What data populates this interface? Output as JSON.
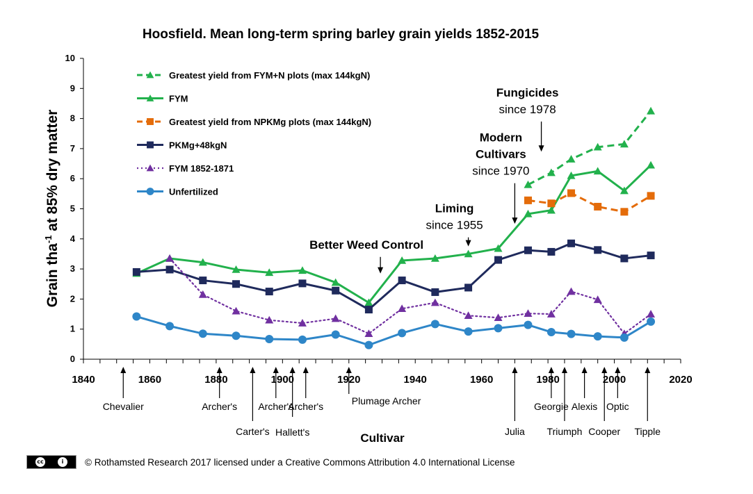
{
  "chart_data": {
    "type": "line",
    "title": "Hoosfield. Mean long-term spring barley grain yields 1852-2015",
    "xlabel": "Cultivar",
    "ylabel_main": "Grain tha",
    "ylabel_sup": "-1",
    "ylabel_rest": " at 85% dry matter",
    "xlim": [
      1840,
      2020
    ],
    "ylim": [
      0,
      10
    ],
    "x_ticks": [
      1840,
      1860,
      1880,
      1900,
      1920,
      1940,
      1960,
      1980,
      2000,
      2020
    ],
    "y_ticks": [
      0,
      1,
      2,
      3,
      4,
      5,
      6,
      7,
      8,
      9,
      10
    ],
    "legend_position": "top-left",
    "series": [
      {
        "name": "Greatest yield from FYM+N plots (max 144kgN)",
        "color": "#22b14c",
        "line": "dashed",
        "marker": "triangle",
        "x": [
          1974,
          1981,
          1987,
          1995,
          2003,
          2011
        ],
        "y": [
          5.8,
          6.2,
          6.65,
          7.05,
          7.15,
          8.25
        ]
      },
      {
        "name": "FYM",
        "color": "#22b14c",
        "line": "solid",
        "marker": "triangle",
        "x": [
          1856,
          1866,
          1876,
          1886,
          1896,
          1906,
          1916,
          1926,
          1936,
          1946,
          1956,
          1965,
          1974,
          1981,
          1987,
          1995,
          2003,
          2011
        ],
        "y": [
          2.85,
          3.35,
          3.22,
          2.98,
          2.88,
          2.95,
          2.55,
          1.88,
          3.28,
          3.35,
          3.5,
          3.68,
          4.83,
          4.95,
          6.1,
          6.25,
          5.6,
          6.45
        ]
      },
      {
        "name": "Greatest yield from NPKMg plots (max 144kgN)",
        "color": "#e46c0a",
        "line": "dashed",
        "marker": "square",
        "x": [
          1974,
          1981,
          1987,
          1995,
          2003,
          2011
        ],
        "y": [
          5.28,
          5.18,
          5.52,
          5.07,
          4.9,
          5.43
        ]
      },
      {
        "name": "PKMg+48kgN",
        "color": "#1f2a5c",
        "line": "solid",
        "marker": "square",
        "x": [
          1856,
          1866,
          1876,
          1886,
          1896,
          1906,
          1916,
          1926,
          1936,
          1946,
          1956,
          1965,
          1974,
          1981,
          1987,
          1995,
          2003,
          2011
        ],
        "y": [
          2.9,
          2.98,
          2.62,
          2.5,
          2.25,
          2.52,
          2.28,
          1.65,
          2.62,
          2.23,
          2.38,
          3.3,
          3.62,
          3.57,
          3.85,
          3.63,
          3.35,
          3.45
        ]
      },
      {
        "name": "FYM 1852-1871",
        "color": "#7030a0",
        "line": "dotted",
        "marker": "triangle",
        "x": [
          1866,
          1876,
          1886,
          1896,
          1906,
          1916,
          1926,
          1936,
          1946,
          1956,
          1965,
          1974,
          1981,
          1987,
          1995,
          2003,
          2011
        ],
        "y": [
          3.35,
          2.15,
          1.6,
          1.3,
          1.2,
          1.35,
          0.85,
          1.68,
          1.88,
          1.45,
          1.38,
          1.52,
          1.5,
          2.25,
          1.98,
          0.85,
          1.5
        ]
      },
      {
        "name": "Unfertilized",
        "color": "#2e86c8",
        "line": "solid",
        "marker": "circle",
        "x": [
          1856,
          1866,
          1876,
          1886,
          1896,
          1906,
          1916,
          1926,
          1936,
          1946,
          1956,
          1965,
          1974,
          1981,
          1987,
          1995,
          2003,
          2011
        ],
        "y": [
          1.42,
          1.1,
          0.85,
          0.78,
          0.67,
          0.65,
          0.82,
          0.47,
          0.87,
          1.17,
          0.92,
          1.03,
          1.14,
          0.9,
          0.84,
          0.76,
          0.72,
          1.25
        ]
      }
    ],
    "annotations": [
      {
        "lines": [
          {
            "text": "Better Weed Control",
            "bold": true
          }
        ],
        "arrow_x": 1929.5,
        "arrow_y_from": 3.4,
        "arrow_y_to": 2.85
      },
      {
        "lines": [
          {
            "text": "Liming",
            "bold": true
          },
          {
            "text": "since 1955",
            "bold": false
          }
        ],
        "arrow_x": 1956,
        "arrow_y_from": 4.05,
        "arrow_y_to": 3.75
      },
      {
        "lines": [
          {
            "text": "Modern",
            "bold": true
          },
          {
            "text": "Cultivars",
            "bold": true
          },
          {
            "text": "since 1970",
            "bold": false
          }
        ],
        "arrow_x": 1970,
        "arrow_y_from": 5.85,
        "arrow_y_to": 4.5
      },
      {
        "lines": [
          {
            "text": "Fungicides",
            "bold": true
          },
          {
            "text": "since 1978",
            "bold": false
          }
        ],
        "arrow_x": 1978,
        "arrow_y_from": 7.9,
        "arrow_y_to": 6.9
      }
    ],
    "cultivars": [
      {
        "name": "Chevalier",
        "x": 1852,
        "row": 1
      },
      {
        "name": "Archer's",
        "x": 1881,
        "row": 1
      },
      {
        "name": "Carter's",
        "x": 1891,
        "row": 3
      },
      {
        "name": "Archer's",
        "x": 1898,
        "row": 1
      },
      {
        "name": "Hallett's",
        "x": 1903,
        "row": 2
      },
      {
        "name": "Archer's",
        "x": 1907,
        "row": 1
      },
      {
        "name": "Plumage Archer",
        "x": 1920,
        "row": 0
      },
      {
        "name": "Julia",
        "x": 1970,
        "row": 3
      },
      {
        "name": "Georgie",
        "x": 1981,
        "row": 1
      },
      {
        "name": "Triumph",
        "x": 1985,
        "row": 3
      },
      {
        "name": "Alexis",
        "x": 1991,
        "row": 1
      },
      {
        "name": "Cooper",
        "x": 1997,
        "row": 3
      },
      {
        "name": "Optic",
        "x": 2001,
        "row": 1
      },
      {
        "name": "Tipple",
        "x": 2010,
        "row": 3
      }
    ]
  },
  "footer": {
    "cc_icon": "cc-by-badge",
    "cc_letters": "cc",
    "by_letters": "i",
    "credit": "© Rothamsted Research 2017 licensed under a Creative Commons Attribution 4.0 International License"
  }
}
